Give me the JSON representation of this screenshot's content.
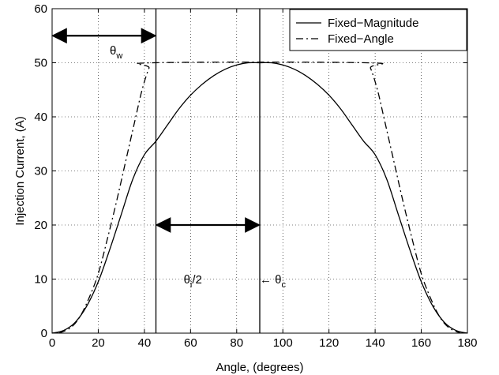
{
  "chart_data": {
    "type": "line",
    "xlabel": "Angle, (degrees)",
    "ylabel": "Injection Current, (A)",
    "xlim": [
      0,
      180
    ],
    "ylim": [
      0,
      60
    ],
    "xticks": [
      0,
      20,
      40,
      60,
      80,
      100,
      120,
      140,
      160,
      180
    ],
    "yticks": [
      0,
      10,
      20,
      30,
      40,
      50,
      60
    ],
    "grid": true,
    "legend_position": "top-right",
    "series": [
      {
        "name": "Fixed−Magnitude",
        "line_style": "solid",
        "color": "#000000",
        "points": [
          [
            0,
            0
          ],
          [
            5,
            0.5
          ],
          [
            10,
            2
          ],
          [
            15,
            5
          ],
          [
            20,
            9.5
          ],
          [
            25,
            15.5
          ],
          [
            30,
            22
          ],
          [
            35,
            28.5
          ],
          [
            40,
            33
          ],
          [
            45,
            35.5
          ],
          [
            50,
            38.5
          ],
          [
            55,
            41.5
          ],
          [
            60,
            44
          ],
          [
            65,
            46
          ],
          [
            70,
            47.6
          ],
          [
            75,
            48.8
          ],
          [
            80,
            49.6
          ],
          [
            85,
            50
          ],
          [
            90,
            50
          ],
          [
            95,
            50
          ],
          [
            100,
            49.6
          ],
          [
            105,
            48.8
          ],
          [
            110,
            47.6
          ],
          [
            115,
            46
          ],
          [
            120,
            44
          ],
          [
            125,
            41.5
          ],
          [
            130,
            38.5
          ],
          [
            135,
            35.5
          ],
          [
            140,
            33
          ],
          [
            145,
            28.5
          ],
          [
            150,
            22
          ],
          [
            155,
            15.5
          ],
          [
            160,
            9.5
          ],
          [
            165,
            5
          ],
          [
            170,
            2
          ],
          [
            175,
            0.5
          ],
          [
            180,
            0
          ]
        ]
      },
      {
        "name": "Fixed−Angle",
        "line_style": "dashdot",
        "color": "#000000",
        "points": [
          [
            3,
            0
          ],
          [
            8,
            1
          ],
          [
            12,
            3
          ],
          [
            16,
            6.5
          ],
          [
            20,
            11
          ],
          [
            24,
            17.5
          ],
          [
            28,
            24.5
          ],
          [
            32,
            32
          ],
          [
            36,
            39.5
          ],
          [
            39,
            45
          ],
          [
            42,
            49
          ],
          [
            44,
            50
          ],
          [
            136,
            50
          ],
          [
            138,
            49
          ],
          [
            141,
            45
          ],
          [
            144,
            39.5
          ],
          [
            148,
            32
          ],
          [
            152,
            24.5
          ],
          [
            156,
            17.5
          ],
          [
            160,
            11
          ],
          [
            164,
            6.5
          ],
          [
            168,
            3
          ],
          [
            172,
            1
          ],
          [
            177,
            0
          ]
        ]
      }
    ],
    "vertical_lines": [
      45,
      90
    ],
    "annotations": [
      {
        "id": "theta_w",
        "label": "θ",
        "sub": "w",
        "x": 25,
        "y": 51.5,
        "arrow_from": 0,
        "arrow_to": 45,
        "arrow_y": 55
      },
      {
        "id": "theta_i",
        "label": "θ",
        "sub": "i",
        "suffix": "/2",
        "x": 57,
        "y": 9.2,
        "arrow_from": 45,
        "arrow_to": 90,
        "arrow_y": 20
      },
      {
        "id": "theta_c",
        "prefix": "← ",
        "label": "θ",
        "sub": "c",
        "x": 90,
        "y": 9.2
      }
    ]
  }
}
